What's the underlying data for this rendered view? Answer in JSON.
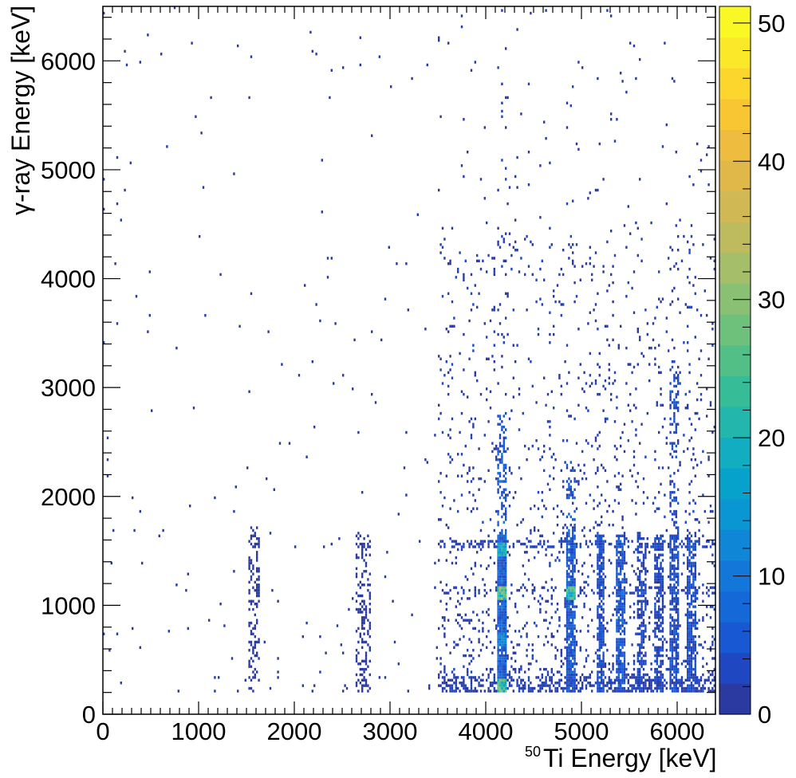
{
  "chart_data": {
    "type": "heatmap",
    "title": "",
    "xlabel_prefix": "50",
    "xlabel": "Ti Energy [keV]",
    "ylabel": "γ-ray Energy [keV]",
    "xlim": [
      0,
      6400
    ],
    "ylim": [
      0,
      6500
    ],
    "x_ticks": [
      0,
      1000,
      2000,
      3000,
      4000,
      5000,
      6000
    ],
    "y_ticks": [
      0,
      1000,
      2000,
      3000,
      4000,
      5000,
      6000
    ],
    "colorbar": {
      "min": 0,
      "max": 51.2,
      "ticks": [
        0,
        10,
        20,
        30,
        40,
        50
      ],
      "colors": [
        "#2b3aa0",
        "#1f47c2",
        "#1858d2",
        "#1468d8",
        "#1277d9",
        "#0f86d6",
        "#0a95d3",
        "#06a2cc",
        "#12adc0",
        "#22b6ac",
        "#37bc98",
        "#52bf87",
        "#6ec17b",
        "#8ac073",
        "#a5be6a",
        "#bebb5f",
        "#d0b954",
        "#e0b84a",
        "#eebc3f",
        "#f8c533",
        "#fcd62c",
        "#fbe828",
        "#f9f724"
      ]
    },
    "dominant_ridges_x": [
      1580,
      2720,
      4170,
      4880,
      5200,
      5400,
      5620,
      5810,
      5970,
      6150
    ],
    "hot_spots": [
      {
        "x": 4170,
        "y": 1120,
        "z": 35
      },
      {
        "x": 4170,
        "y": 1520,
        "z": 25
      },
      {
        "x": 4170,
        "y": 260,
        "z": 30
      },
      {
        "x": 4880,
        "y": 1120,
        "z": 30
      },
      {
        "x": 4170,
        "y": 700,
        "z": 15
      }
    ]
  }
}
